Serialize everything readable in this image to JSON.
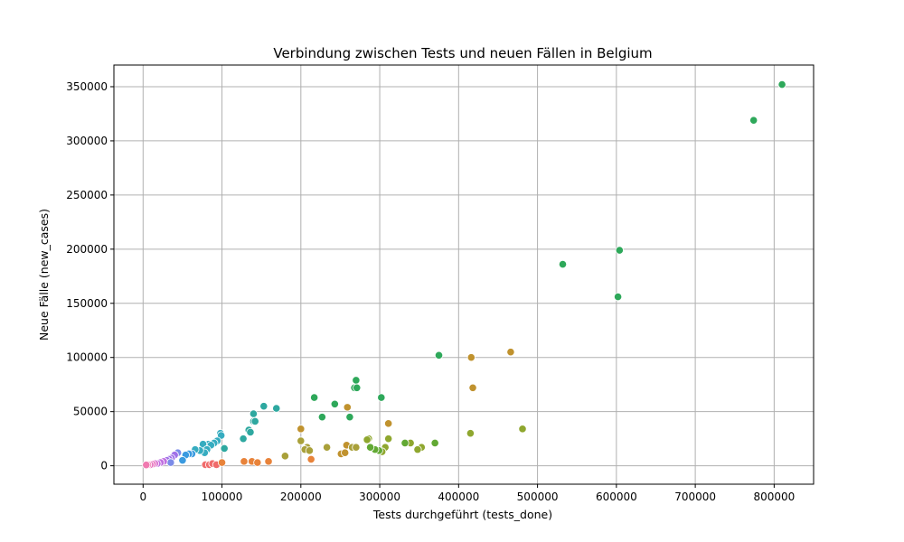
{
  "chart_data": {
    "type": "scatter",
    "title": "Verbindung zwischen Tests und neuen Fällen in Belgium",
    "xlabel": "Tests durchgeführt (tests_done)",
    "ylabel": "Neue Fälle (new_cases)",
    "xlim": [
      -37000,
      850000
    ],
    "ylim": [
      -17000,
      370000
    ],
    "xticks": [
      0,
      100000,
      200000,
      300000,
      400000,
      500000,
      600000,
      700000,
      800000
    ],
    "yticks": [
      0,
      50000,
      100000,
      150000,
      200000,
      250000,
      300000,
      350000
    ],
    "grid": true,
    "legend": "none",
    "points": [
      {
        "x": 810000,
        "y": 352000,
        "c": "#2ea85a"
      },
      {
        "x": 774000,
        "y": 319000,
        "c": "#2ea85a"
      },
      {
        "x": 604000,
        "y": 199000,
        "c": "#2ea85a"
      },
      {
        "x": 532000,
        "y": 186000,
        "c": "#2ea85a"
      },
      {
        "x": 602000,
        "y": 156000,
        "c": "#2ea85a"
      },
      {
        "x": 375000,
        "y": 102000,
        "c": "#2ea85a"
      },
      {
        "x": 466000,
        "y": 105000,
        "c": "#c0922e"
      },
      {
        "x": 416000,
        "y": 100000,
        "c": "#c0922e"
      },
      {
        "x": 418000,
        "y": 72000,
        "c": "#c0922e"
      },
      {
        "x": 481000,
        "y": 34000,
        "c": "#8fa72f"
      },
      {
        "x": 415000,
        "y": 30000,
        "c": "#8fa72f"
      },
      {
        "x": 370000,
        "y": 21000,
        "c": "#62a934"
      },
      {
        "x": 353000,
        "y": 17000,
        "c": "#8fa72f"
      },
      {
        "x": 348000,
        "y": 15000,
        "c": "#8fa72f"
      },
      {
        "x": 339000,
        "y": 21000,
        "c": "#8fa72f"
      },
      {
        "x": 332000,
        "y": 21000,
        "c": "#62a934"
      },
      {
        "x": 311000,
        "y": 39000,
        "c": "#c0922e"
      },
      {
        "x": 311000,
        "y": 25000,
        "c": "#8fa72f"
      },
      {
        "x": 307000,
        "y": 17000,
        "c": "#8fa72f"
      },
      {
        "x": 303000,
        "y": 13000,
        "c": "#8fa72f"
      },
      {
        "x": 299000,
        "y": 14000,
        "c": "#62a934"
      },
      {
        "x": 294000,
        "y": 15000,
        "c": "#62a934"
      },
      {
        "x": 286000,
        "y": 25000,
        "c": "#8fa72f"
      },
      {
        "x": 284000,
        "y": 24000,
        "c": "#8fa72f"
      },
      {
        "x": 288000,
        "y": 17000,
        "c": "#62a934"
      },
      {
        "x": 270000,
        "y": 79000,
        "c": "#2ea85a"
      },
      {
        "x": 268000,
        "y": 72000,
        "c": "#2ea85a"
      },
      {
        "x": 271000,
        "y": 72000,
        "c": "#2ea85a"
      },
      {
        "x": 302000,
        "y": 63000,
        "c": "#2ea85a"
      },
      {
        "x": 262000,
        "y": 45000,
        "c": "#2ea85a"
      },
      {
        "x": 259000,
        "y": 54000,
        "c": "#c0922e"
      },
      {
        "x": 243000,
        "y": 57000,
        "c": "#2ea85a"
      },
      {
        "x": 217000,
        "y": 63000,
        "c": "#2ea85a"
      },
      {
        "x": 227000,
        "y": 45000,
        "c": "#2ea85a"
      },
      {
        "x": 200000,
        "y": 34000,
        "c": "#c0922e"
      },
      {
        "x": 200000,
        "y": 23000,
        "c": "#a9a03a"
      },
      {
        "x": 208000,
        "y": 17000,
        "c": "#a9a03a"
      },
      {
        "x": 205000,
        "y": 15000,
        "c": "#a9a03a"
      },
      {
        "x": 211000,
        "y": 14000,
        "c": "#a9a03a"
      },
      {
        "x": 233000,
        "y": 17000,
        "c": "#a9a03a"
      },
      {
        "x": 258000,
        "y": 19000,
        "c": "#c0922e"
      },
      {
        "x": 265000,
        "y": 17000,
        "c": "#a9a03a"
      },
      {
        "x": 270000,
        "y": 17000,
        "c": "#a9a03a"
      },
      {
        "x": 251000,
        "y": 11000,
        "c": "#c0922e"
      },
      {
        "x": 256000,
        "y": 12000,
        "c": "#c0922e"
      },
      {
        "x": 213000,
        "y": 6000,
        "c": "#e8833a"
      },
      {
        "x": 180000,
        "y": 9000,
        "c": "#a9a03a"
      },
      {
        "x": 153000,
        "y": 55000,
        "c": "#2ea8a0"
      },
      {
        "x": 169000,
        "y": 53000,
        "c": "#2ea8a0"
      },
      {
        "x": 140000,
        "y": 48000,
        "c": "#2ea8a0"
      },
      {
        "x": 140000,
        "y": 41000,
        "c": "#2ea8a0"
      },
      {
        "x": 142000,
        "y": 41000,
        "c": "#2ea8a0"
      },
      {
        "x": 134000,
        "y": 33000,
        "c": "#2ea8a0"
      },
      {
        "x": 136000,
        "y": 31000,
        "c": "#2ea8a0"
      },
      {
        "x": 127000,
        "y": 25000,
        "c": "#2ea8a0"
      },
      {
        "x": 103000,
        "y": 16000,
        "c": "#2ea8a0"
      },
      {
        "x": 98000,
        "y": 30000,
        "c": "#36acc0"
      },
      {
        "x": 99000,
        "y": 28000,
        "c": "#36acc0"
      },
      {
        "x": 94000,
        "y": 23000,
        "c": "#36acc0"
      },
      {
        "x": 90000,
        "y": 21000,
        "c": "#36acc0"
      },
      {
        "x": 83000,
        "y": 20000,
        "c": "#36acc0"
      },
      {
        "x": 86000,
        "y": 19000,
        "c": "#36acc0"
      },
      {
        "x": 76000,
        "y": 20000,
        "c": "#36acc0"
      },
      {
        "x": 81000,
        "y": 15000,
        "c": "#36acc0"
      },
      {
        "x": 78000,
        "y": 12000,
        "c": "#36acc0"
      },
      {
        "x": 72000,
        "y": 14000,
        "c": "#36acc0"
      },
      {
        "x": 66000,
        "y": 15000,
        "c": "#36acc0"
      },
      {
        "x": 62000,
        "y": 11000,
        "c": "#3a9ae0"
      },
      {
        "x": 58000,
        "y": 11000,
        "c": "#3a9ae0"
      },
      {
        "x": 54000,
        "y": 10000,
        "c": "#3a9ae0"
      },
      {
        "x": 50000,
        "y": 5000,
        "c": "#3a9ae0"
      },
      {
        "x": 44000,
        "y": 12000,
        "c": "#7b8be8"
      },
      {
        "x": 40000,
        "y": 10000,
        "c": "#a070e8"
      },
      {
        "x": 36000,
        "y": 7000,
        "c": "#a070e8"
      },
      {
        "x": 33000,
        "y": 6000,
        "c": "#a070e8"
      },
      {
        "x": 30000,
        "y": 5000,
        "c": "#a070e8"
      },
      {
        "x": 35000,
        "y": 3000,
        "c": "#7b8be8"
      },
      {
        "x": 26000,
        "y": 4000,
        "c": "#c070e0"
      },
      {
        "x": 22000,
        "y": 3000,
        "c": "#c070e0"
      },
      {
        "x": 18000,
        "y": 2000,
        "c": "#c070e0"
      },
      {
        "x": 15000,
        "y": 2000,
        "c": "#d870d0"
      },
      {
        "x": 12000,
        "y": 1500,
        "c": "#e878c0"
      },
      {
        "x": 9000,
        "y": 1000,
        "c": "#e878c0"
      },
      {
        "x": 6000,
        "y": 1000,
        "c": "#f07ab0"
      },
      {
        "x": 4000,
        "y": 800,
        "c": "#f07ab0"
      },
      {
        "x": 79000,
        "y": 1000,
        "c": "#f06b6b"
      },
      {
        "x": 84000,
        "y": 1000,
        "c": "#f06b6b"
      },
      {
        "x": 88000,
        "y": 2000,
        "c": "#f06b6b"
      },
      {
        "x": 93000,
        "y": 1000,
        "c": "#f06b6b"
      },
      {
        "x": 100000,
        "y": 3000,
        "c": "#e8833a"
      },
      {
        "x": 128000,
        "y": 4000,
        "c": "#e8833a"
      },
      {
        "x": 138000,
        "y": 4000,
        "c": "#e8833a"
      },
      {
        "x": 145000,
        "y": 3000,
        "c": "#e8833a"
      },
      {
        "x": 159000,
        "y": 4000,
        "c": "#e8833a"
      }
    ]
  }
}
